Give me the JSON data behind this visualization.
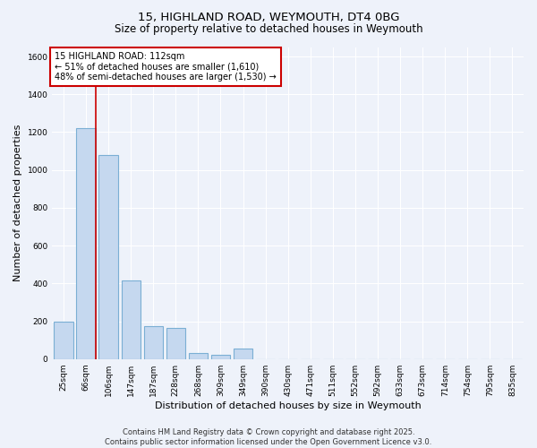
{
  "title_line1": "15, HIGHLAND ROAD, WEYMOUTH, DT4 0BG",
  "title_line2": "Size of property relative to detached houses in Weymouth",
  "xlabel": "Distribution of detached houses by size in Weymouth",
  "ylabel": "Number of detached properties",
  "categories": [
    "25sqm",
    "66sqm",
    "106sqm",
    "147sqm",
    "187sqm",
    "228sqm",
    "268sqm",
    "309sqm",
    "349sqm",
    "390sqm",
    "430sqm",
    "471sqm",
    "511sqm",
    "552sqm",
    "592sqm",
    "633sqm",
    "673sqm",
    "714sqm",
    "754sqm",
    "795sqm",
    "835sqm"
  ],
  "values": [
    200,
    1220,
    1080,
    415,
    175,
    165,
    30,
    20,
    55,
    0,
    0,
    0,
    0,
    0,
    0,
    0,
    0,
    0,
    0,
    0,
    0
  ],
  "bar_color": "#c5d8ef",
  "bar_edge_color": "#7bafd4",
  "marker_line_color": "#cc0000",
  "annotation_text": "15 HIGHLAND ROAD: 112sqm\n← 51% of detached houses are smaller (1,610)\n48% of semi-detached houses are larger (1,530) →",
  "annotation_box_color": "#ffffff",
  "annotation_box_edge_color": "#cc0000",
  "ylim": [
    0,
    1650
  ],
  "yticks": [
    0,
    200,
    400,
    600,
    800,
    1000,
    1200,
    1400,
    1600
  ],
  "background_color": "#eef2fa",
  "grid_color": "#ffffff",
  "footer_text": "Contains HM Land Registry data © Crown copyright and database right 2025.\nContains public sector information licensed under the Open Government Licence v3.0.",
  "title_fontsize": 9.5,
  "subtitle_fontsize": 8.5,
  "tick_fontsize": 6.5,
  "label_fontsize": 8,
  "footer_fontsize": 6,
  "annotation_fontsize": 7
}
